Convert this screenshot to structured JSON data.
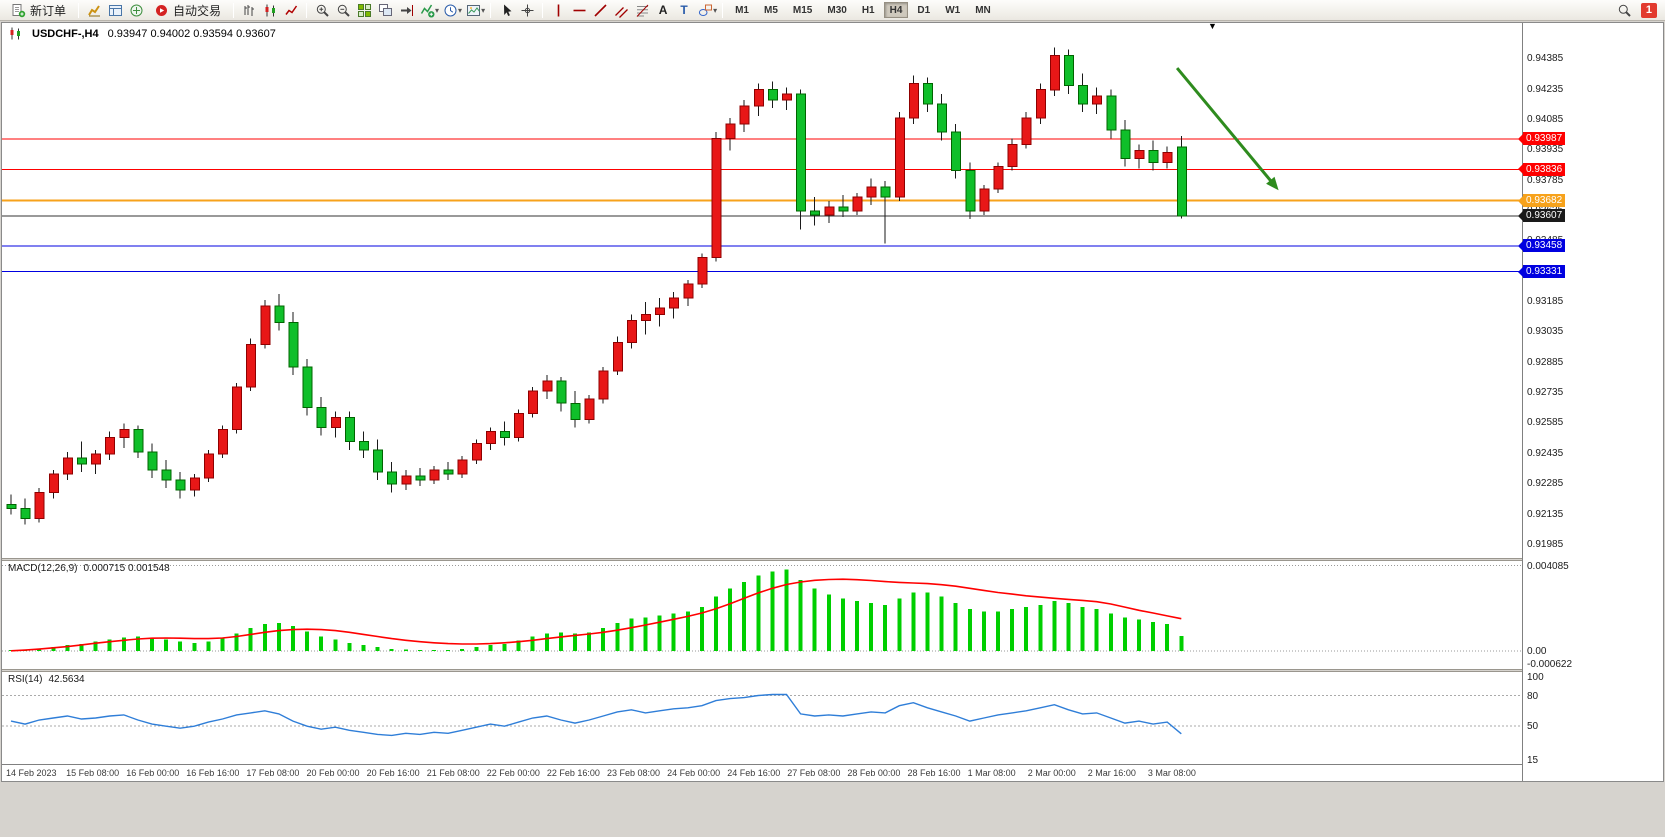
{
  "toolbar": {
    "items": [
      {
        "t": "btn",
        "name": "new-order-button",
        "icon": "new-order-icon",
        "label": "新订单"
      },
      {
        "t": "sep"
      },
      {
        "t": "ico",
        "name": "market-watch-icon"
      },
      {
        "t": "ico",
        "name": "data-window-icon"
      },
      {
        "t": "ico",
        "name": "navigator-icon"
      },
      {
        "t": "btn",
        "name": "auto-trading-button",
        "icon": "auto-trading-icon",
        "label": "自动交易"
      },
      {
        "t": "sep"
      },
      {
        "t": "ico",
        "name": "bar-chart-icon"
      },
      {
        "t": "ico",
        "name": "candlestick-chart-icon"
      },
      {
        "t": "ico",
        "name": "line-chart-icon"
      },
      {
        "t": "sep"
      },
      {
        "t": "ico",
        "name": "zoom-in-icon"
      },
      {
        "t": "ico",
        "name": "zoom-out-icon"
      },
      {
        "t": "ico",
        "name": "tile-windows-icon"
      },
      {
        "t": "ico",
        "name": "auto-arrange-icon"
      },
      {
        "t": "ico",
        "name": "chart-shift-icon"
      },
      {
        "t": "drop",
        "name": "indicators-icon"
      },
      {
        "t": "drop",
        "name": "periods-icon"
      },
      {
        "t": "drop",
        "name": "templates-icon"
      },
      {
        "t": "sep"
      },
      {
        "t": "ico",
        "name": "cursor-icon"
      },
      {
        "t": "ico",
        "name": "crosshair-icon"
      },
      {
        "t": "sep"
      },
      {
        "t": "ico",
        "name": "vertical-line-icon"
      },
      {
        "t": "ico",
        "name": "horizontal-line-icon"
      },
      {
        "t": "ico",
        "name": "trendline-icon"
      },
      {
        "t": "ico",
        "name": "equidistant-channel-icon"
      },
      {
        "t": "ico",
        "name": "fibonacci-icon"
      },
      {
        "t": "ico",
        "name": "text-icon"
      },
      {
        "t": "ico",
        "name": "text-label-icon"
      },
      {
        "t": "drop",
        "name": "shapes-icon"
      },
      {
        "t": "sep"
      },
      {
        "t": "tf"
      }
    ],
    "timeframes": [
      "M1",
      "M5",
      "M15",
      "M30",
      "H1",
      "H4",
      "D1",
      "W1",
      "MN"
    ],
    "active_timeframe": "H4",
    "search_icon": "search-icon",
    "notification_count": "1"
  },
  "chart": {
    "symbol_period": "USDCHF-,H4",
    "ohlc": "0.93947 0.94002 0.93594 0.93607"
  },
  "chart_data": {
    "type": "candlestick",
    "symbol": "USDCHF",
    "period": "H4",
    "colors": {
      "up": "#e81717",
      "up_border": "#8f0000",
      "down": "#0fbf2a",
      "down_border": "#006400",
      "wick": "#1a1a1a"
    },
    "price_axis": [
      "0.94385",
      "0.94235",
      "0.94085",
      "0.93935",
      "0.93785",
      "0.93635",
      "0.93485",
      "0.93335",
      "0.93185",
      "0.93035",
      "0.92885",
      "0.92735",
      "0.92585",
      "0.92435",
      "0.92285",
      "0.92135",
      "0.91985"
    ],
    "hlines": [
      {
        "price": 0.93987,
        "label": "0.93987",
        "color": "#ff0000",
        "width": 1
      },
      {
        "price": 0.93836,
        "label": "0.93836",
        "color": "#ff0000",
        "width": 1
      },
      {
        "price": 0.93682,
        "label": "0.93682",
        "color": "#f7a21b",
        "width": 2
      },
      {
        "price": 0.93458,
        "label": "0.93458",
        "color": "#0000e0",
        "width": 1
      },
      {
        "price": 0.93331,
        "label": "0.93331",
        "color": "#0000e0",
        "width": 1
      }
    ],
    "current_price": {
      "price": 0.93607,
      "label": "0.93607",
      "color": "#333333",
      "box": "#1a1a1a"
    },
    "arrow": {
      "from_bar": 82.7,
      "from_price": 0.94337,
      "to_bar": 89.9,
      "to_price": 0.93733,
      "color": "#2e8b1e"
    },
    "candles": [
      [
        0.9218,
        0.9223,
        0.9213,
        0.9216
      ],
      [
        0.9216,
        0.9221,
        0.9208,
        0.9211
      ],
      [
        0.9211,
        0.9226,
        0.9209,
        0.9224
      ],
      [
        0.9224,
        0.9235,
        0.9221,
        0.9233
      ],
      [
        0.9233,
        0.9244,
        0.923,
        0.9241
      ],
      [
        0.9241,
        0.9249,
        0.9234,
        0.9238
      ],
      [
        0.9238,
        0.9245,
        0.9233,
        0.9243
      ],
      [
        0.9243,
        0.9254,
        0.924,
        0.9251
      ],
      [
        0.9251,
        0.9258,
        0.9246,
        0.9255
      ],
      [
        0.9255,
        0.9257,
        0.9241,
        0.9244
      ],
      [
        0.9244,
        0.9248,
        0.9231,
        0.9235
      ],
      [
        0.9235,
        0.924,
        0.9226,
        0.923
      ],
      [
        0.923,
        0.9234,
        0.9221,
        0.9225
      ],
      [
        0.9225,
        0.9233,
        0.9222,
        0.9231
      ],
      [
        0.9231,
        0.9245,
        0.9229,
        0.9243
      ],
      [
        0.9243,
        0.9257,
        0.9241,
        0.9255
      ],
      [
        0.9255,
        0.9278,
        0.9253,
        0.9276
      ],
      [
        0.9276,
        0.93,
        0.9274,
        0.9297
      ],
      [
        0.9297,
        0.9319,
        0.9295,
        0.9316
      ],
      [
        0.9316,
        0.9322,
        0.9304,
        0.9308
      ],
      [
        0.9308,
        0.9313,
        0.9282,
        0.9286
      ],
      [
        0.9286,
        0.929,
        0.9262,
        0.9266
      ],
      [
        0.9266,
        0.9271,
        0.9252,
        0.9256
      ],
      [
        0.9256,
        0.9264,
        0.9251,
        0.9261
      ],
      [
        0.9261,
        0.9264,
        0.9245,
        0.9249
      ],
      [
        0.9249,
        0.9254,
        0.9241,
        0.9245
      ],
      [
        0.9245,
        0.925,
        0.923,
        0.9234
      ],
      [
        0.9234,
        0.9239,
        0.9224,
        0.9228
      ],
      [
        0.9228,
        0.9235,
        0.9225,
        0.9232
      ],
      [
        0.9232,
        0.9236,
        0.9227,
        0.923
      ],
      [
        0.923,
        0.9237,
        0.9228,
        0.9235
      ],
      [
        0.9235,
        0.9239,
        0.923,
        0.9233
      ],
      [
        0.9233,
        0.9242,
        0.9231,
        0.924
      ],
      [
        0.924,
        0.925,
        0.9238,
        0.9248
      ],
      [
        0.9248,
        0.9256,
        0.9245,
        0.9254
      ],
      [
        0.9254,
        0.9259,
        0.9247,
        0.9251
      ],
      [
        0.9251,
        0.9265,
        0.9249,
        0.9263
      ],
      [
        0.9263,
        0.9276,
        0.9261,
        0.9274
      ],
      [
        0.9274,
        0.9282,
        0.927,
        0.9279
      ],
      [
        0.9279,
        0.9281,
        0.9264,
        0.9268
      ],
      [
        0.9268,
        0.9274,
        0.9256,
        0.926
      ],
      [
        0.926,
        0.9272,
        0.9258,
        0.927
      ],
      [
        0.927,
        0.9286,
        0.9268,
        0.9284
      ],
      [
        0.9284,
        0.9301,
        0.9282,
        0.9298
      ],
      [
        0.9298,
        0.9312,
        0.9295,
        0.9309
      ],
      [
        0.9309,
        0.9318,
        0.9302,
        0.9312
      ],
      [
        0.9312,
        0.932,
        0.9306,
        0.9315
      ],
      [
        0.9315,
        0.9323,
        0.931,
        0.932
      ],
      [
        0.932,
        0.9329,
        0.9316,
        0.9327
      ],
      [
        0.9327,
        0.9342,
        0.9325,
        0.934
      ],
      [
        0.934,
        0.9402,
        0.9338,
        0.9399
      ],
      [
        0.9399,
        0.9409,
        0.9393,
        0.9406
      ],
      [
        0.9406,
        0.9418,
        0.9402,
        0.9415
      ],
      [
        0.9415,
        0.9426,
        0.941,
        0.9423
      ],
      [
        0.9423,
        0.9427,
        0.9414,
        0.9418
      ],
      [
        0.9418,
        0.9424,
        0.9413,
        0.9421
      ],
      [
        0.9421,
        0.9423,
        0.9354,
        0.9363
      ],
      [
        0.9363,
        0.937,
        0.9356,
        0.9361
      ],
      [
        0.9361,
        0.9368,
        0.9357,
        0.9365
      ],
      [
        0.9365,
        0.9371,
        0.936,
        0.9363
      ],
      [
        0.9363,
        0.9372,
        0.9361,
        0.937
      ],
      [
        0.937,
        0.9379,
        0.9366,
        0.9375
      ],
      [
        0.9375,
        0.9378,
        0.9347,
        0.937
      ],
      [
        0.937,
        0.9412,
        0.9368,
        0.9409
      ],
      [
        0.9409,
        0.943,
        0.9406,
        0.9426
      ],
      [
        0.9426,
        0.9429,
        0.9412,
        0.9416
      ],
      [
        0.9416,
        0.9421,
        0.9398,
        0.9402
      ],
      [
        0.9402,
        0.9406,
        0.9379,
        0.9383
      ],
      [
        0.9383,
        0.9387,
        0.9359,
        0.9363
      ],
      [
        0.9363,
        0.9376,
        0.9361,
        0.9374
      ],
      [
        0.9374,
        0.9387,
        0.9372,
        0.9385
      ],
      [
        0.9385,
        0.9399,
        0.9383,
        0.9396
      ],
      [
        0.9396,
        0.9412,
        0.9394,
        0.9409
      ],
      [
        0.9409,
        0.9426,
        0.9406,
        0.9423
      ],
      [
        0.9423,
        0.9444,
        0.942,
        0.944
      ],
      [
        0.944,
        0.9443,
        0.9421,
        0.9425
      ],
      [
        0.9425,
        0.9431,
        0.9412,
        0.9416
      ],
      [
        0.9416,
        0.9424,
        0.9411,
        0.942
      ],
      [
        0.942,
        0.9423,
        0.9399,
        0.9403
      ],
      [
        0.9403,
        0.9408,
        0.9385,
        0.9389
      ],
      [
        0.9389,
        0.9396,
        0.9384,
        0.9393
      ],
      [
        0.9393,
        0.9398,
        0.9383,
        0.9387
      ],
      [
        0.9387,
        0.9395,
        0.9384,
        0.9392
      ],
      [
        0.93947,
        0.94002,
        0.93594,
        0.93607
      ]
    ],
    "time_labels": [
      "14 Feb 2023",
      "15 Feb 08:00",
      "16 Feb 00:00",
      "16 Feb 16:00",
      "17 Feb 08:00",
      "20 Feb 00:00",
      "20 Feb 16:00",
      "21 Feb 08:00",
      "22 Feb 00:00",
      "22 Feb 16:00",
      "23 Feb 08:00",
      "24 Feb 00:00",
      "24 Feb 16:00",
      "27 Feb 08:00",
      "28 Feb 00:00",
      "28 Feb 16:00",
      "1 Mar 08:00",
      "2 Mar 00:00",
      "2 Mar 16:00",
      "3 Mar 08:00"
    ],
    "macd": {
      "label": "MACD(12,26,9)",
      "values": "0.000715 0.001548",
      "axis": [
        "0.004085",
        "0.00",
        "-0.000622"
      ],
      "hist_color": "#00cf00",
      "signal_color": "#ff0000",
      "histogram": [
        5e-05,
        8e-05,
        0.00012,
        0.0002,
        0.0003,
        0.00035,
        0.00045,
        0.00055,
        0.00065,
        0.0007,
        0.00065,
        0.00055,
        0.00045,
        0.0004,
        0.00045,
        0.0006,
        0.00085,
        0.0011,
        0.0013,
        0.00135,
        0.0012,
        0.00095,
        0.0007,
        0.00055,
        0.0004,
        0.0003,
        0.0002,
        0.0001,
        8e-05,
        5e-05,
        5e-05,
        5e-05,
        0.0001,
        0.0002,
        0.0003,
        0.00035,
        0.0005,
        0.0007,
        0.00085,
        0.0009,
        0.00085,
        0.0009,
        0.0011,
        0.00135,
        0.00155,
        0.0016,
        0.0017,
        0.0018,
        0.0019,
        0.0021,
        0.0026,
        0.003,
        0.0033,
        0.0036,
        0.0038,
        0.0039,
        0.0034,
        0.003,
        0.0027,
        0.0025,
        0.0024,
        0.0023,
        0.0022,
        0.0025,
        0.0028,
        0.0028,
        0.0026,
        0.0023,
        0.002,
        0.0019,
        0.0019,
        0.002,
        0.0021,
        0.0022,
        0.0024,
        0.0023,
        0.0021,
        0.002,
        0.0018,
        0.0016,
        0.0015,
        0.0014,
        0.0013,
        0.000715
      ],
      "signal": [
        2e-05,
        5e-05,
        0.0001,
        0.00016,
        0.00022,
        0.0003,
        0.00038,
        0.00045,
        0.00052,
        0.00058,
        0.00062,
        0.00063,
        0.00062,
        0.0006,
        0.0006,
        0.00063,
        0.0007,
        0.0008,
        0.0009,
        0.00098,
        0.00103,
        0.00105,
        0.00103,
        0.00098,
        0.0009,
        0.0008,
        0.0007,
        0.0006,
        0.00052,
        0.00045,
        0.0004,
        0.00036,
        0.00034,
        0.00034,
        0.00036,
        0.0004,
        0.00045,
        0.00052,
        0.0006,
        0.00068,
        0.00075,
        0.00082,
        0.0009,
        0.001,
        0.00112,
        0.00125,
        0.00138,
        0.00152,
        0.00166,
        0.00182,
        0.00202,
        0.00226,
        0.00252,
        0.00278,
        0.003,
        0.00318,
        0.0033,
        0.00338,
        0.00342,
        0.00343,
        0.00341,
        0.00337,
        0.00332,
        0.00328,
        0.00325,
        0.00322,
        0.00317,
        0.0031,
        0.003,
        0.0029,
        0.0028,
        0.00272,
        0.00264,
        0.00258,
        0.00252,
        0.00247,
        0.00242,
        0.00236,
        0.00225,
        0.0021,
        0.00195,
        0.00182,
        0.00168,
        0.001548
      ]
    },
    "rsi": {
      "label": "RSI(14)",
      "value": "42.5634",
      "axis": [
        "100",
        "80",
        "50",
        "15"
      ],
      "levels": [
        80,
        50
      ],
      "color": "#2f7ed8",
      "series": [
        55,
        52,
        56,
        58,
        60,
        57,
        58,
        60,
        61,
        56,
        52,
        50,
        48,
        50,
        54,
        57,
        61,
        63,
        65,
        62,
        55,
        50,
        47,
        49,
        46,
        44,
        42,
        41,
        43,
        42,
        44,
        43,
        46,
        49,
        52,
        50,
        54,
        58,
        60,
        56,
        53,
        56,
        60,
        64,
        66,
        63,
        65,
        67,
        68,
        70,
        75,
        77,
        78,
        80,
        81,
        81,
        62,
        60,
        61,
        60,
        62,
        64,
        63,
        70,
        73,
        68,
        64,
        60,
        55,
        58,
        61,
        63,
        65,
        68,
        71,
        66,
        62,
        63,
        58,
        53,
        55,
        52,
        54,
        42.56
      ]
    }
  }
}
